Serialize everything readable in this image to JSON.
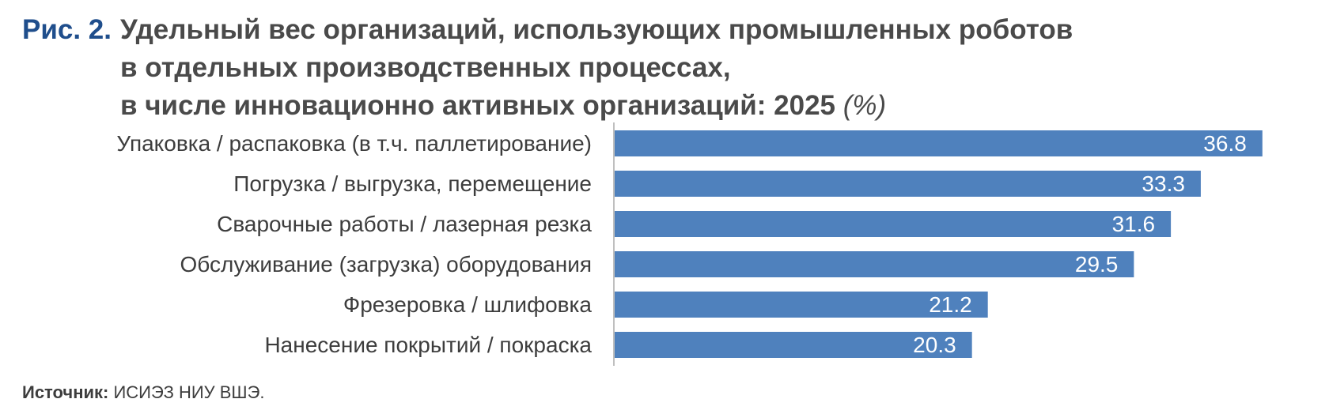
{
  "figure": {
    "label": "Рис. 2.",
    "title_lines": [
      "Удельный вес организаций, использующих промышленных роботов",
      "в отдельных производственных процессах,",
      "в числе инновационно активных организаций: 2025"
    ],
    "unit": "(%)"
  },
  "chart_data": {
    "type": "bar",
    "orientation": "horizontal",
    "title": "Удельный вес организаций, использующих промышленных роботов в отдельных производственных процессах, в числе инновационно активных организаций: 2025",
    "unit": "%",
    "categories": [
      "Упаковка / распаковка (в т.ч. паллетирование)",
      "Погрузка / выгрузка, перемещение",
      "Сварочные работы / лазерная резка",
      "Обслуживание (загрузка) оборудования",
      "Фрезеровка / шлифовка",
      "Нанесение покрытий / покраска"
    ],
    "values": [
      36.8,
      33.3,
      31.6,
      29.5,
      21.2,
      20.3
    ],
    "value_labels": [
      "36.8",
      "33.3",
      "31.6",
      "29.5",
      "21.2",
      "20.3"
    ],
    "xlim": [
      0,
      40
    ],
    "grid": false,
    "legend": "none",
    "bar_color": "#4f81bd",
    "axis_color": "#bfbfbf"
  },
  "source": {
    "label": "Источник:",
    "text": "ИСИЭЗ НИУ ВШЭ."
  }
}
